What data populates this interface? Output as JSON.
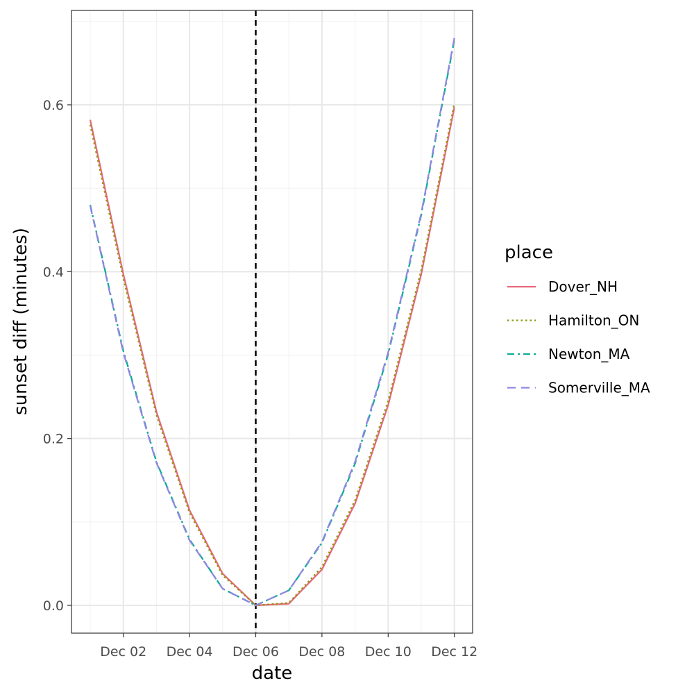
{
  "chart_data": {
    "type": "line",
    "xlabel": "date",
    "ylabel": "sunset diff (minutes)",
    "x": [
      "Dec 01",
      "Dec 02",
      "Dec 03",
      "Dec 04",
      "Dec 05",
      "Dec 06",
      "Dec 07",
      "Dec 08",
      "Dec 09",
      "Dec 10",
      "Dec 11",
      "Dec 12"
    ],
    "x_ticks": [
      "Dec 02",
      "Dec 04",
      "Dec 06",
      "Dec 08",
      "Dec 10",
      "Dec 12"
    ],
    "y_ticks": [
      "0.0",
      "0.2",
      "0.4",
      "0.6"
    ],
    "ylim": [
      -0.03,
      0.71
    ],
    "grid": true,
    "vline": {
      "x": "Dec 06",
      "style": "dashed",
      "color": "#000000"
    },
    "legend": {
      "title": "place",
      "placement": "right"
    },
    "series": [
      {
        "name": "Dover_NH",
        "color": "#E7697A",
        "dash": "solid",
        "values": [
          0.582,
          0.397,
          0.232,
          0.114,
          0.038,
          0.0,
          0.002,
          0.043,
          0.122,
          0.24,
          0.397,
          0.597
        ]
      },
      {
        "name": "Hamilton_ON",
        "color": "#8A9A0A",
        "dash": "dotted",
        "values": [
          0.576,
          0.392,
          0.228,
          0.111,
          0.036,
          0.0,
          0.003,
          0.046,
          0.126,
          0.245,
          0.402,
          0.602
        ]
      },
      {
        "name": "Newton_MA",
        "color": "#0FAA9A",
        "dash": "dashed",
        "values": [
          0.48,
          0.305,
          0.172,
          0.079,
          0.02,
          0.0,
          0.018,
          0.075,
          0.17,
          0.301,
          0.468,
          0.678
        ]
      },
      {
        "name": "Somerville_MA",
        "color": "#8E88E0",
        "dash": "longdash",
        "values": [
          0.479,
          0.303,
          0.171,
          0.078,
          0.02,
          0.0,
          0.018,
          0.076,
          0.172,
          0.303,
          0.47,
          0.68
        ]
      }
    ]
  }
}
